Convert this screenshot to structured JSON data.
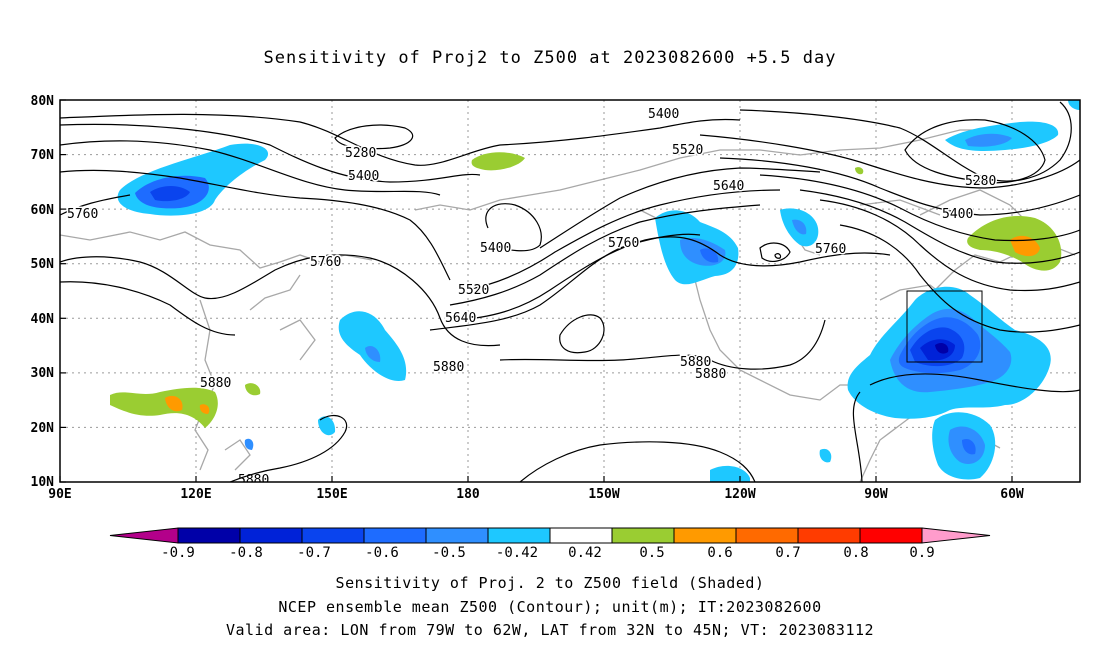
{
  "title": "Sensitivity of Proj2 to Z500 at 2023082600 +5.5 day",
  "lat_labels": [
    "80N",
    "70N",
    "60N",
    "50N",
    "40N",
    "30N",
    "20N",
    "10N"
  ],
  "lon_labels": [
    "90E",
    "120E",
    "150E",
    "180",
    "150W",
    "120W",
    "90W",
    "60W"
  ],
  "contour_labels": [
    "5280",
    "5400",
    "5400",
    "5400",
    "5520",
    "5520",
    "5640",
    "5640",
    "5760",
    "5760",
    "5760",
    "5760",
    "5880",
    "5880",
    "5880",
    "5880",
    "5280",
    "5400"
  ],
  "colorbar": {
    "labels": [
      "-0.9",
      "-0.8",
      "-0.7",
      "-0.6",
      "-0.5",
      "-0.42",
      "0.42",
      "0.5",
      "0.6",
      "0.7",
      "0.8",
      "0.9"
    ],
    "colors": [
      "#b3008a",
      "#0000a8",
      "#0022d8",
      "#0a44ee",
      "#1e6cff",
      "#2f8fff",
      "#1ec8ff",
      "#ffffff",
      "#9acd32",
      "#ff9a00",
      "#ff6a00",
      "#ff3c00",
      "#ff0000",
      "#ff9ccc"
    ]
  },
  "footer": {
    "line1": "Sensitivity of Proj. 2 to Z500 field (Shaded)",
    "line2": "NCEP ensemble mean Z500 (Contour); unit(m); IT:2023082600",
    "line3": "Valid area: LON from 79W to 62W, LAT from 32N to 45N; VT: 2023083112"
  }
}
